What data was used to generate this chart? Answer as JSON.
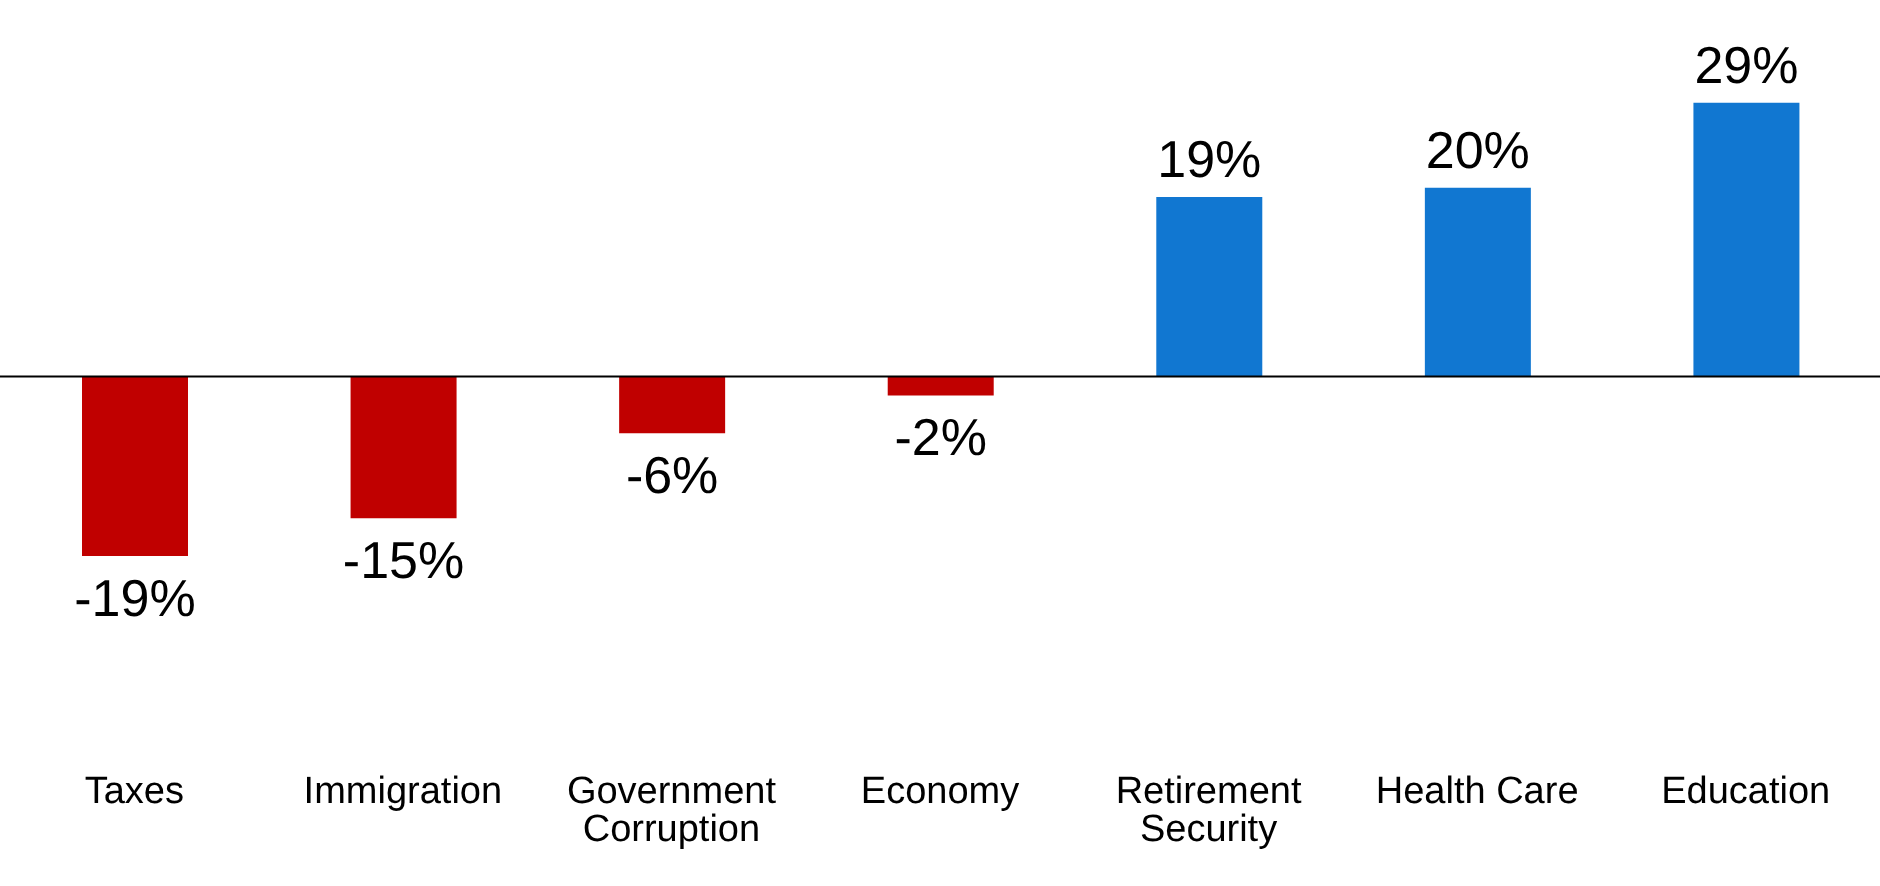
{
  "chart_data": {
    "type": "bar",
    "categories": [
      "Taxes",
      "Immigration",
      "Government Corruption",
      "Economy",
      "Retirement Security",
      "Health Care",
      "Education"
    ],
    "values": [
      -19,
      -15,
      -6,
      -2,
      19,
      20,
      29
    ],
    "colors": [
      "#c00000",
      "#c00000",
      "#c00000",
      "#c00000",
      "#1177d1",
      "#1177d1",
      "#1177d1"
    ],
    "value_labels": [
      "-19%",
      "-15%",
      "-6%",
      "-2%",
      "19%",
      "20%",
      "29%"
    ]
  }
}
